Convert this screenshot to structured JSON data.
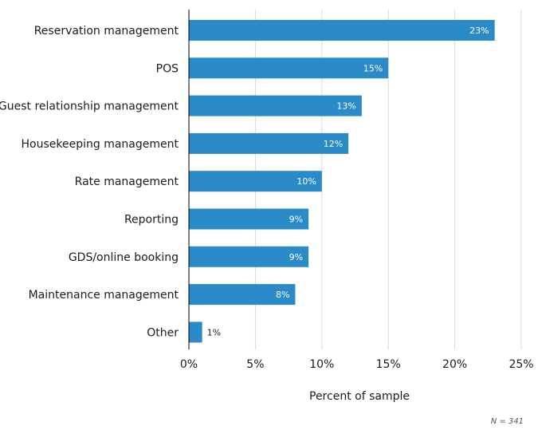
{
  "chart_data": {
    "type": "bar",
    "orientation": "horizontal",
    "categories": [
      "Reservation management",
      "POS",
      "Guest relationship management",
      "Housekeeping management",
      "Rate management",
      "Reporting",
      "GDS/online booking",
      "Maintenance management",
      "Other"
    ],
    "values": [
      23,
      15,
      13,
      12,
      10,
      9,
      9,
      8,
      1
    ],
    "value_labels": [
      "23%",
      "15%",
      "13%",
      "12%",
      "10%",
      "9%",
      "9%",
      "8%",
      "1%"
    ],
    "xlabel": "Percent of sample",
    "ylabel": "",
    "xlim": [
      0,
      25
    ],
    "xticks": [
      0,
      5,
      10,
      15,
      20,
      25
    ],
    "xtick_labels": [
      "0%",
      "5%",
      "10%",
      "15%",
      "20%",
      "25%"
    ],
    "grid": "vertical",
    "note": "N = 341",
    "colors": {
      "bar": "#2b8ac8",
      "grid": "#d9d9d9",
      "axis": "#000000",
      "label_inside": "#ffffff",
      "label_outside": "#1a1a1a"
    }
  }
}
